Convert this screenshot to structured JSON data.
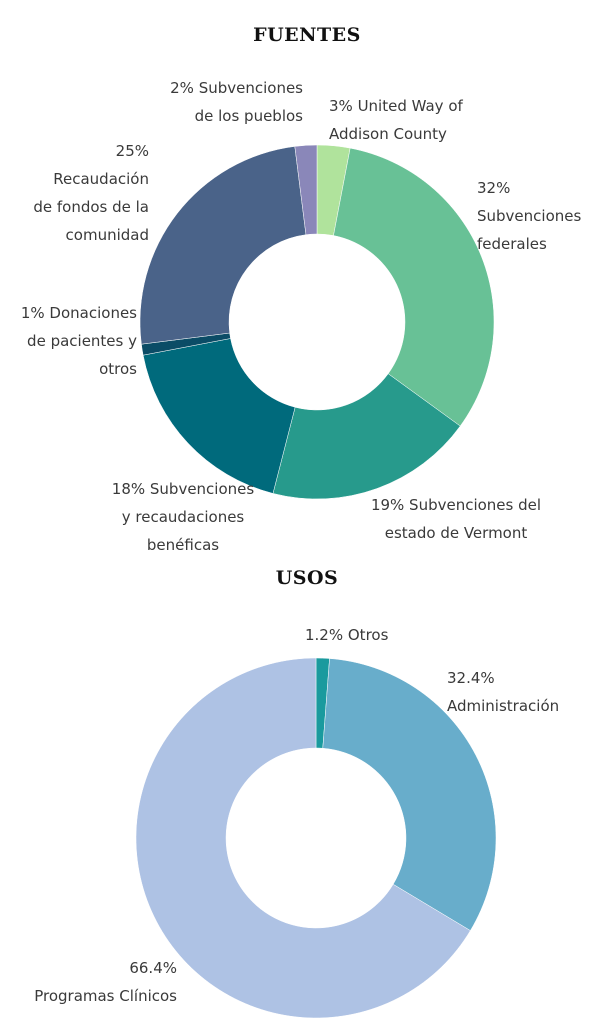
{
  "chart_data": [
    {
      "type": "donut",
      "title": "FUENTES",
      "categories": [
        "3% United Way of Addison County",
        "32% Subvenciones federales",
        "19% Subvenciones del estado de Vermont",
        "18% Subvenciones y recaudaciones benéficas",
        "1% Donaciones de pacientes y otros",
        "25% Recaudación de fondos de la comunidad",
        "2% Subvenciones de los pueblos"
      ],
      "values": [
        3,
        32,
        19,
        18,
        1,
        25,
        2
      ],
      "colors": [
        "#b0e39c",
        "#68c196",
        "#279a8c",
        "#006a7c",
        "#0b4c66",
        "#4a6389",
        "#8a87b9"
      ],
      "labels": [
        "3% United Way of\nAddison County",
        "32%\nSubvenciones\nfederales",
        "19% Subvenciones del\nestado de Vermont",
        "18% Subvenciones\ny recaudaciones\nbenéficas",
        "1%  Donaciones\nde pacientes y\notros",
        "25%\nRecaudación\nde fondos de la\ncomunidad",
        "2% Subvenciones\nde los pueblos"
      ]
    },
    {
      "type": "donut",
      "title": "USOS",
      "categories": [
        "1.2% Otros",
        "32.4% Administración",
        "66.4% Programas Clínicos"
      ],
      "values": [
        1.2,
        32.4,
        66.4
      ],
      "colors": [
        "#1a9a9e",
        "#68adcb",
        "#aec2e4"
      ],
      "labels": [
        "1.2% Otros",
        "32.4%\nAdministración",
        "66.4%\nProgramas Clínicos"
      ]
    }
  ]
}
